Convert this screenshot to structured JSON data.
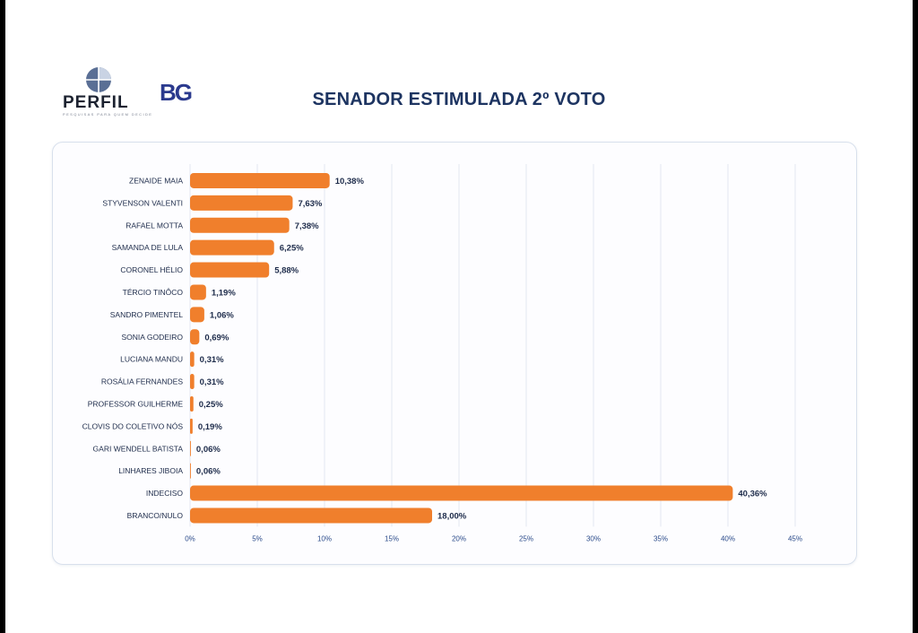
{
  "brand": {
    "perfil_logo": "PERFIL",
    "perfil_tagline": "PESQUISAS PARA QUEM DECIDE",
    "bg_logo": "BG"
  },
  "colors": {
    "bar": "#f07f2c",
    "title": "#1d3461",
    "grid": "#e4e8f0"
  },
  "chart_data": {
    "type": "bar",
    "orientation": "horizontal",
    "title": "SENADOR ESTIMULADA 2º VOTO",
    "xlabel": "",
    "ylabel": "",
    "xlim": [
      0,
      45
    ],
    "ticks": [
      "0%",
      "5%",
      "10%",
      "15%",
      "20%",
      "25%",
      "30%",
      "35%",
      "40%",
      "45%"
    ],
    "tick_values": [
      0,
      5,
      10,
      15,
      20,
      25,
      30,
      35,
      40,
      45
    ],
    "grid": "vertical",
    "categories": [
      "ZENAIDE MAIA",
      "STYVENSON VALENTI",
      "RAFAEL MOTTA",
      "SAMANDA DE LULA",
      "CORONEL HÉLIO",
      "TÉRCIO TINÔCO",
      "SANDRO PIMENTEL",
      "SONIA GODEIRO",
      "LUCIANA MANDU",
      "ROSÁLIA FERNANDES",
      "PROFESSOR GUILHERME",
      "CLOVIS DO COLETIVO NÓS",
      "GARI WENDELL BATISTA",
      "LINHARES JIBOIA",
      "INDECISO",
      "BRANCO/NULO"
    ],
    "values": [
      10.38,
      7.63,
      7.38,
      6.25,
      5.88,
      1.19,
      1.06,
      0.69,
      0.31,
      0.31,
      0.25,
      0.19,
      0.06,
      0.06,
      40.36,
      18.0
    ],
    "value_labels": [
      "10,38%",
      "7,63%",
      "7,38%",
      "6,25%",
      "5,88%",
      "1,19%",
      "1,06%",
      "0,69%",
      "0,31%",
      "0,31%",
      "0,25%",
      "0,19%",
      "0,06%",
      "0,06%",
      "40,36%",
      "18,00%"
    ]
  }
}
